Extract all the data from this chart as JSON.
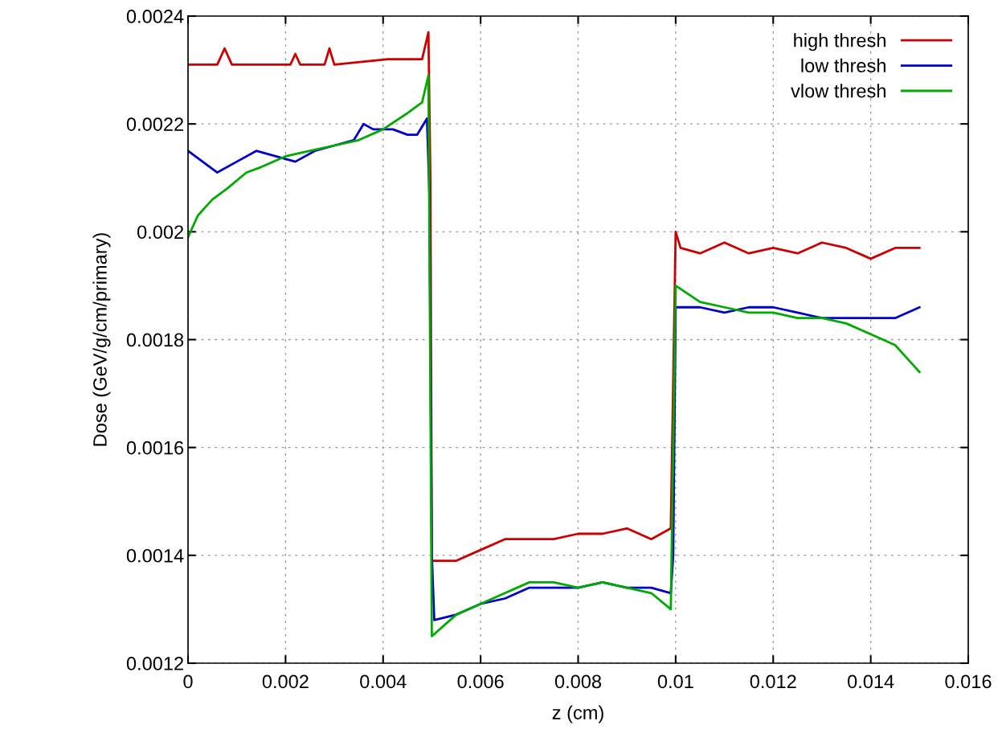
{
  "chart_data": {
    "type": "line",
    "xlabel": "z (cm)",
    "ylabel": "Dose (GeV/g/cm/primary)",
    "xlim": [
      0,
      0.016
    ],
    "xticks": [
      0,
      0.002,
      0.004,
      0.006,
      0.008,
      0.01,
      0.012,
      0.014,
      0.016
    ],
    "ylim": [
      0.0012,
      0.0024
    ],
    "yticks": [
      0.0012,
      0.0014,
      0.0016,
      0.0018,
      0.002,
      0.0022,
      0.0024
    ],
    "grid": true,
    "legend": "top right",
    "line_style": "solid",
    "marker": "none",
    "series": [
      {
        "name": "high thresh",
        "color": "#cc0000",
        "x": [
          0,
          0.0006,
          0.00075,
          0.0009,
          0.0021,
          0.0022,
          0.0023,
          0.0028,
          0.0029,
          0.003,
          0.0041,
          0.0048,
          0.00493,
          0.00497,
          0.005,
          0.0055,
          0.006,
          0.0065,
          0.007,
          0.0075,
          0.008,
          0.0085,
          0.009,
          0.0095,
          0.0099,
          0.01,
          0.0101,
          0.0105,
          0.011,
          0.0115,
          0.012,
          0.0125,
          0.013,
          0.0135,
          0.014,
          0.0145,
          0.015
        ],
        "values": [
          0.00231,
          0.00231,
          0.00234,
          0.00231,
          0.00231,
          0.00233,
          0.00231,
          0.00231,
          0.00234,
          0.00231,
          0.00232,
          0.00232,
          0.00237,
          0.0021,
          0.00139,
          0.00139,
          0.00141,
          0.00143,
          0.00143,
          0.00143,
          0.00144,
          0.00144,
          0.00145,
          0.00143,
          0.00145,
          0.002,
          0.00197,
          0.00196,
          0.00198,
          0.00196,
          0.00197,
          0.00196,
          0.00198,
          0.00197,
          0.00195,
          0.00197,
          0.00197
        ]
      },
      {
        "name": "low thresh",
        "color": "#0000cc",
        "x": [
          0,
          0.0003,
          0.0006,
          0.001,
          0.0014,
          0.0018,
          0.0022,
          0.0026,
          0.003,
          0.0034,
          0.0036,
          0.0038,
          0.0042,
          0.0045,
          0.0047,
          0.0049,
          0.00495,
          0.005,
          0.00505,
          0.0055,
          0.006,
          0.0065,
          0.007,
          0.0075,
          0.008,
          0.0085,
          0.009,
          0.0095,
          0.0099,
          0.00995,
          0.01,
          0.0105,
          0.011,
          0.0115,
          0.012,
          0.0125,
          0.013,
          0.0135,
          0.014,
          0.0145,
          0.015
        ],
        "values": [
          0.00215,
          0.00213,
          0.00211,
          0.00213,
          0.00215,
          0.00214,
          0.00213,
          0.00215,
          0.00216,
          0.00217,
          0.0022,
          0.00219,
          0.00219,
          0.00218,
          0.00218,
          0.00221,
          0.00207,
          0.0014,
          0.00128,
          0.00129,
          0.00131,
          0.00132,
          0.00134,
          0.00134,
          0.00134,
          0.00135,
          0.00134,
          0.00134,
          0.00133,
          0.0014,
          0.00186,
          0.00186,
          0.00185,
          0.00186,
          0.00186,
          0.00185,
          0.00184,
          0.00184,
          0.00184,
          0.00184,
          0.00186
        ]
      },
      {
        "name": "vlow thresh",
        "color": "#00aa00",
        "x": [
          0,
          0.0002,
          0.0005,
          0.0008,
          0.0012,
          0.0015,
          0.002,
          0.0025,
          0.003,
          0.0035,
          0.004,
          0.0045,
          0.0048,
          0.00493,
          0.005,
          0.0055,
          0.006,
          0.0065,
          0.007,
          0.0075,
          0.008,
          0.0085,
          0.009,
          0.0095,
          0.0099,
          0.01,
          0.0105,
          0.011,
          0.0115,
          0.012,
          0.0125,
          0.013,
          0.0135,
          0.014,
          0.0145,
          0.0148,
          0.015
        ],
        "values": [
          0.00199,
          0.00203,
          0.00206,
          0.00208,
          0.00211,
          0.00212,
          0.00214,
          0.00215,
          0.00216,
          0.00217,
          0.00219,
          0.00222,
          0.00224,
          0.00229,
          0.00125,
          0.00129,
          0.00131,
          0.00133,
          0.00135,
          0.00135,
          0.00134,
          0.00135,
          0.00134,
          0.00133,
          0.0013,
          0.0019,
          0.00187,
          0.00186,
          0.00185,
          0.00185,
          0.00184,
          0.00184,
          0.00183,
          0.00181,
          0.00179,
          0.00176,
          0.00174
        ]
      }
    ]
  }
}
